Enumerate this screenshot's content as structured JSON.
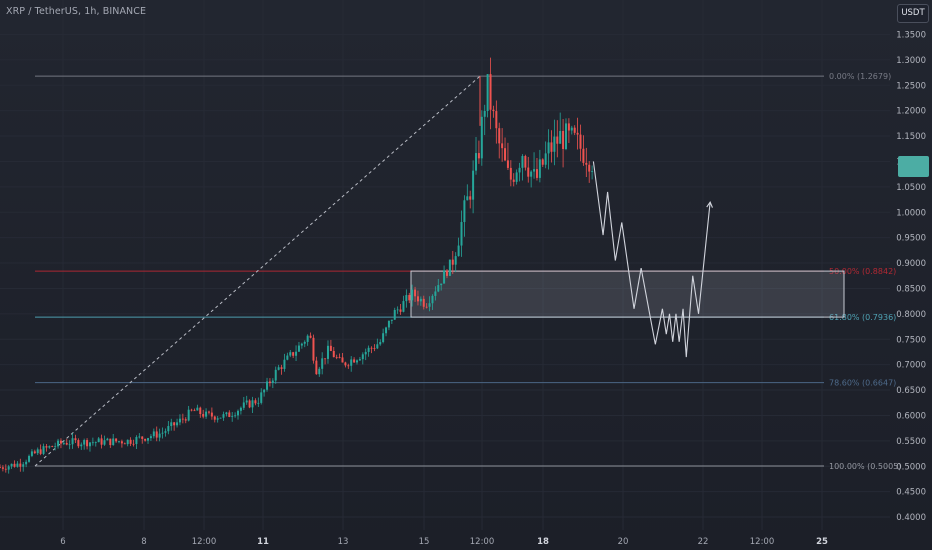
{
  "header": {
    "pair_title": "XRP / TetherUS, 1h, BINANCE",
    "currency": "USDT"
  },
  "chart_data": {
    "type": "candlestick",
    "ylim": [
      0.38,
      1.37
    ],
    "price_ticks": [
      "1.3500",
      "1.3000",
      "1.2500",
      "1.2000",
      "1.1500",
      "1.1000",
      "1.0500",
      "1.0000",
      "0.9500",
      "0.9000",
      "0.8500",
      "0.8000",
      "0.7500",
      "0.7000",
      "0.6500",
      "0.6000",
      "0.5500",
      "0.5000",
      "0.4500",
      "0.4000"
    ],
    "price_tick_values": [
      1.35,
      1.3,
      1.25,
      1.2,
      1.15,
      1.1,
      1.05,
      1.0,
      0.95,
      0.9,
      0.85,
      0.8,
      0.75,
      0.7,
      0.65,
      0.6,
      0.55,
      0.5,
      0.45,
      0.4
    ],
    "time_ticks": [
      "6",
      "8",
      "12:00",
      "11",
      "13",
      "15",
      "12:00",
      "18",
      "20",
      "22",
      "12:00",
      "25"
    ],
    "bold_time_ticks": [
      "11",
      "18",
      "25"
    ],
    "fib_levels": [
      {
        "label": "0.00% (1.2679)",
        "value": 1.2679,
        "color": "#787b86"
      },
      {
        "label": "50.00% (0.8842)",
        "value": 0.8842,
        "color": "#b22833"
      },
      {
        "label": "61.80% (0.7936)",
        "value": 0.7936,
        "color": "#4fa3b5"
      },
      {
        "label": "78.60% (0.6647)",
        "value": 0.6647,
        "color": "#4e6a8a"
      },
      {
        "label": "100.00% (0.5005)",
        "value": 0.5005,
        "color": "#9598a1"
      }
    ],
    "zone": {
      "low": 0.7936,
      "high": 0.8842
    },
    "projection_path": [
      [
        0.0,
        1.1
      ],
      [
        0.15,
        0.955
      ],
      [
        0.22,
        1.04
      ],
      [
        0.34,
        0.905
      ],
      [
        0.44,
        0.98
      ],
      [
        0.63,
        0.81
      ],
      [
        0.74,
        0.89
      ],
      [
        0.96,
        0.74
      ],
      [
        1.07,
        0.81
      ],
      [
        1.13,
        0.76
      ],
      [
        1.18,
        0.8
      ],
      [
        1.23,
        0.745
      ],
      [
        1.28,
        0.8
      ],
      [
        1.33,
        0.745
      ],
      [
        1.39,
        0.81
      ],
      [
        1.44,
        0.715
      ],
      [
        1.54,
        0.875
      ],
      [
        1.63,
        0.8
      ],
      [
        1.81,
        1.02
      ]
    ],
    "price_path": [
      [
        0.0,
        0.498
      ],
      [
        0.3,
        0.505
      ],
      [
        0.6,
        0.53
      ],
      [
        1.0,
        0.547
      ],
      [
        1.5,
        0.548
      ],
      [
        2.0,
        0.55
      ],
      [
        2.5,
        0.565
      ],
      [
        2.8,
        0.59
      ],
      [
        3.0,
        0.61
      ],
      [
        3.2,
        0.6
      ],
      [
        3.5,
        0.598
      ],
      [
        3.8,
        0.62
      ],
      [
        4.0,
        0.63
      ],
      [
        4.3,
        0.69
      ],
      [
        4.6,
        0.73
      ],
      [
        4.8,
        0.76
      ],
      [
        4.9,
        0.69
      ],
      [
        5.1,
        0.73
      ],
      [
        5.3,
        0.7
      ],
      [
        5.6,
        0.72
      ],
      [
        5.9,
        0.745
      ],
      [
        6.1,
        0.8
      ],
      [
        6.4,
        0.84
      ],
      [
        6.6,
        0.82
      ],
      [
        6.8,
        0.86
      ],
      [
        7.0,
        0.9
      ],
      [
        7.2,
        1.0
      ],
      [
        7.4,
        1.1
      ],
      [
        7.55,
        1.25
      ],
      [
        7.7,
        1.15
      ],
      [
        7.9,
        1.06
      ],
      [
        8.1,
        1.12
      ],
      [
        8.3,
        1.06
      ],
      [
        8.5,
        1.12
      ],
      [
        8.7,
        1.15
      ],
      [
        8.9,
        1.14
      ],
      [
        9.05,
        1.12
      ],
      [
        9.2,
        1.1
      ]
    ]
  }
}
